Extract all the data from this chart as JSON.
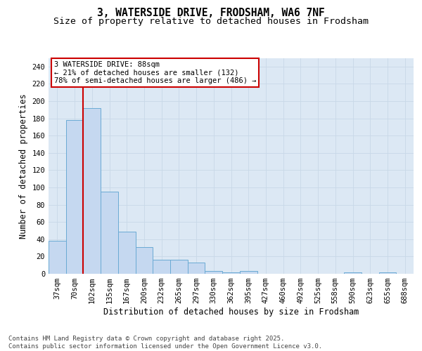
{
  "title_line1": "3, WATERSIDE DRIVE, FRODSHAM, WA6 7NF",
  "title_line2": "Size of property relative to detached houses in Frodsham",
  "xlabel": "Distribution of detached houses by size in Frodsham",
  "ylabel": "Number of detached properties",
  "categories": [
    "37sqm",
    "70sqm",
    "102sqm",
    "135sqm",
    "167sqm",
    "200sqm",
    "232sqm",
    "265sqm",
    "297sqm",
    "330sqm",
    "362sqm",
    "395sqm",
    "427sqm",
    "460sqm",
    "492sqm",
    "525sqm",
    "558sqm",
    "590sqm",
    "623sqm",
    "655sqm",
    "688sqm"
  ],
  "values": [
    38,
    178,
    192,
    95,
    49,
    31,
    16,
    16,
    13,
    3,
    2,
    3,
    0,
    0,
    0,
    0,
    0,
    2,
    0,
    2,
    0
  ],
  "bar_color": "#c5d8f0",
  "bar_edge_color": "#6aaad4",
  "grid_color": "#c8d8e8",
  "background_color": "#dce8f4",
  "vline_x": 1.5,
  "vline_color": "#cc0000",
  "annotation_text": "3 WATERSIDE DRIVE: 88sqm\n← 21% of detached houses are smaller (132)\n78% of semi-detached houses are larger (486) →",
  "annotation_box_color": "#cc0000",
  "ylim": [
    0,
    250
  ],
  "yticks": [
    0,
    20,
    40,
    60,
    80,
    100,
    120,
    140,
    160,
    180,
    200,
    220,
    240
  ],
  "footnote": "Contains HM Land Registry data © Crown copyright and database right 2025.\nContains public sector information licensed under the Open Government Licence v3.0.",
  "title_fontsize": 10.5,
  "subtitle_fontsize": 9.5,
  "axis_label_fontsize": 8.5,
  "tick_fontsize": 7.5,
  "annotation_fontsize": 7.5,
  "footnote_fontsize": 6.5
}
